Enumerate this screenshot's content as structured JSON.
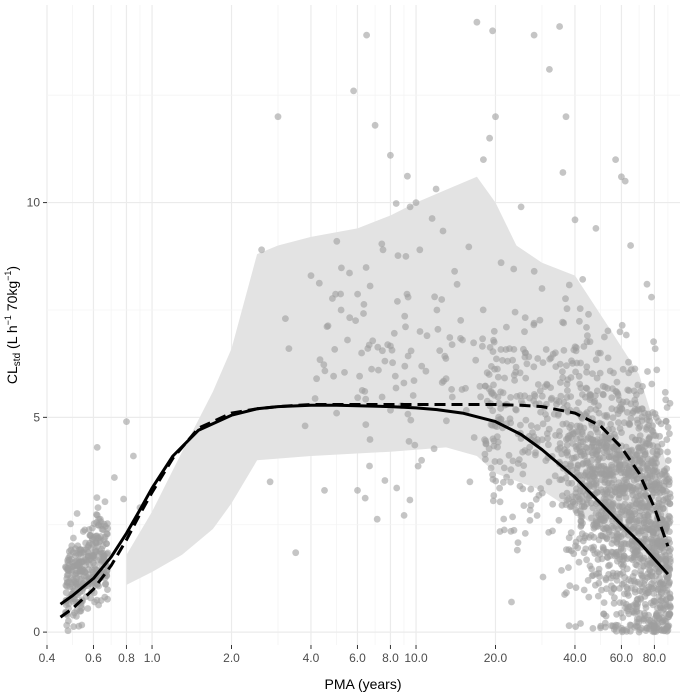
{
  "chart_data": {
    "type": "scatter",
    "title": "",
    "xlabel": "PMA (years)",
    "ylabel": {
      "base": "CL",
      "sub": "std",
      "open": " (L h",
      "sup1": "−1",
      "mid": " 70kg",
      "sup2": "−1",
      "close": ")"
    },
    "x_scale": "log",
    "xlim": [
      0.4,
      100
    ],
    "ylim": [
      -0.3,
      14.6
    ],
    "x_ticks": [
      {
        "value": 0.4,
        "label": "0.4"
      },
      {
        "value": 0.6,
        "label": "0.6"
      },
      {
        "value": 0.8,
        "label": "0.8"
      },
      {
        "value": 1.0,
        "label": "1.0"
      },
      {
        "value": 2.0,
        "label": "2.0"
      },
      {
        "value": 4.0,
        "label": "4.0"
      },
      {
        "value": 6.0,
        "label": "6.0"
      },
      {
        "value": 8.0,
        "label": "8.0"
      },
      {
        "value": 10.0,
        "label": "10.0"
      },
      {
        "value": 20.0,
        "label": "20.0"
      },
      {
        "value": 40.0,
        "label": "40.0"
      },
      {
        "value": 60.0,
        "label": "60.0"
      },
      {
        "value": 80.0,
        "label": "80.0"
      }
    ],
    "y_ticks": [
      {
        "value": 0,
        "label": "0"
      },
      {
        "value": 5,
        "label": "5"
      },
      {
        "value": 10,
        "label": "10"
      }
    ],
    "grid": true,
    "colors": {
      "points": "#9e9e9e",
      "band": "#e3e3e3",
      "grid_major": "#ebebeb",
      "grid_minor": "#f4f4f4",
      "solid_line": "#000000",
      "dashed_line": "#000000"
    },
    "band_upper": [
      {
        "x": 0.8,
        "y": 1.8
      },
      {
        "x": 1.0,
        "y": 2.8
      },
      {
        "x": 1.3,
        "y": 4.2
      },
      {
        "x": 1.7,
        "y": 5.6
      },
      {
        "x": 2.0,
        "y": 6.6
      },
      {
        "x": 2.5,
        "y": 8.8
      },
      {
        "x": 3.0,
        "y": 9.0
      },
      {
        "x": 4.0,
        "y": 9.2
      },
      {
        "x": 6.0,
        "y": 9.4
      },
      {
        "x": 8.0,
        "y": 9.7
      },
      {
        "x": 10.0,
        "y": 10.0
      },
      {
        "x": 13.0,
        "y": 10.3
      },
      {
        "x": 17.0,
        "y": 10.6
      },
      {
        "x": 20.0,
        "y": 10.0
      },
      {
        "x": 24.0,
        "y": 9.0
      },
      {
        "x": 30.0,
        "y": 8.6
      },
      {
        "x": 40.0,
        "y": 8.3
      },
      {
        "x": 55.0,
        "y": 7.0
      },
      {
        "x": 70.0,
        "y": 6.0
      },
      {
        "x": 90.0,
        "y": 3.8
      }
    ],
    "band_lower": [
      {
        "x": 0.8,
        "y": 1.1
      },
      {
        "x": 1.0,
        "y": 1.4
      },
      {
        "x": 1.3,
        "y": 1.8
      },
      {
        "x": 1.7,
        "y": 2.4
      },
      {
        "x": 2.0,
        "y": 3.0
      },
      {
        "x": 2.5,
        "y": 4.0
      },
      {
        "x": 4.0,
        "y": 4.1
      },
      {
        "x": 8.0,
        "y": 4.2
      },
      {
        "x": 13.0,
        "y": 4.3
      },
      {
        "x": 17.0,
        "y": 4.1
      },
      {
        "x": 20.0,
        "y": 3.7
      },
      {
        "x": 30.0,
        "y": 3.3
      },
      {
        "x": 40.0,
        "y": 2.8
      },
      {
        "x": 55.0,
        "y": 2.2
      },
      {
        "x": 70.0,
        "y": 1.7
      },
      {
        "x": 90.0,
        "y": 1.2
      }
    ],
    "series": [
      {
        "style": "solid",
        "x": [
          0.45,
          0.5,
          0.6,
          0.7,
          0.8,
          0.9,
          1.0,
          1.2,
          1.5,
          2.0,
          2.5,
          3.0,
          4.0,
          5.0,
          6.0,
          8.0,
          10.0,
          12.0,
          15.0,
          20.0,
          25.0,
          30.0,
          40.0,
          50.0,
          60.0,
          70.0,
          80.0,
          90.0
        ],
        "y": [
          0.65,
          0.85,
          1.25,
          1.75,
          2.3,
          2.85,
          3.35,
          4.1,
          4.7,
          5.05,
          5.2,
          5.25,
          5.28,
          5.28,
          5.27,
          5.25,
          5.22,
          5.18,
          5.1,
          4.9,
          4.6,
          4.25,
          3.6,
          3.0,
          2.5,
          2.1,
          1.7,
          1.35
        ]
      },
      {
        "style": "dashed",
        "x": [
          0.45,
          0.5,
          0.6,
          0.7,
          0.8,
          0.9,
          1.0,
          1.2,
          1.5,
          2.0,
          2.5,
          3.0,
          4.0,
          5.0,
          6.0,
          8.0,
          10.0,
          15.0,
          20.0,
          25.0,
          30.0,
          40.0,
          50.0,
          60.0,
          70.0,
          80.0,
          90.0
        ],
        "y": [
          0.35,
          0.55,
          1.0,
          1.55,
          2.15,
          2.75,
          3.25,
          4.05,
          4.75,
          5.1,
          5.2,
          5.25,
          5.3,
          5.3,
          5.3,
          5.3,
          5.3,
          5.3,
          5.3,
          5.28,
          5.25,
          5.1,
          4.8,
          4.3,
          3.7,
          2.9,
          2.0
        ]
      }
    ],
    "points": [
      [
        0.8,
        4.9
      ],
      [
        0.85,
        4.1
      ],
      [
        0.62,
        4.3
      ],
      [
        0.72,
        3.6
      ],
      [
        0.78,
        3.1
      ],
      [
        0.9,
        2.9
      ],
      [
        2.6,
        8.9
      ],
      [
        2.8,
        3.5
      ],
      [
        3.0,
        12.0
      ],
      [
        3.2,
        7.3
      ],
      [
        3.3,
        6.6
      ],
      [
        3.5,
        1.85
      ],
      [
        3.8,
        4.8
      ],
      [
        4.0,
        8.3
      ],
      [
        4.2,
        5.9
      ],
      [
        4.5,
        3.3
      ],
      [
        5.0,
        5.1
      ],
      [
        5.2,
        7.5
      ],
      [
        5.5,
        6.8
      ],
      [
        5.8,
        12.6
      ],
      [
        6.0,
        3.3
      ],
      [
        6.5,
        13.9
      ],
      [
        7.0,
        11.8
      ],
      [
        7.2,
        6.1
      ],
      [
        7.5,
        8.9
      ],
      [
        8.0,
        11.1
      ],
      [
        8.5,
        7.7
      ],
      [
        9.0,
        5.8
      ],
      [
        9.5,
        9.9
      ],
      [
        10.0,
        10.0
      ],
      [
        10.5,
        4.0
      ],
      [
        11.0,
        6.9
      ],
      [
        12.0,
        7.5
      ],
      [
        13.0,
        5.9
      ],
      [
        14.0,
        8.4
      ],
      [
        15.0,
        6.8
      ],
      [
        16.0,
        3.5
      ],
      [
        17.0,
        14.2
      ],
      [
        18.0,
        11.0
      ],
      [
        19.0,
        11.5
      ],
      [
        19.5,
        14.0
      ],
      [
        20.0,
        12.0
      ],
      [
        21.0,
        8.6
      ],
      [
        22.0,
        7.1
      ],
      [
        23.0,
        0.7
      ],
      [
        25.0,
        9.9
      ],
      [
        26.0,
        6.5
      ],
      [
        27.0,
        2.6
      ],
      [
        28.0,
        13.9
      ],
      [
        30.0,
        8.0
      ],
      [
        32.0,
        13.1
      ],
      [
        35.0,
        14.1
      ],
      [
        36.0,
        10.7
      ],
      [
        37.0,
        12.0
      ],
      [
        38.0,
        0.15
      ],
      [
        40.0,
        9.6
      ],
      [
        42.0,
        0.2
      ],
      [
        45.0,
        7.4
      ],
      [
        48.0,
        9.4
      ],
      [
        50.0,
        0.1
      ],
      [
        55.0,
        0.15
      ],
      [
        57.0,
        11.0
      ],
      [
        60.0,
        10.6
      ],
      [
        62.0,
        10.5
      ],
      [
        65.0,
        9.0
      ],
      [
        70.0,
        0.0
      ],
      [
        75.0,
        8.1
      ],
      [
        78.0,
        7.8
      ],
      [
        85.0,
        0.05
      ]
    ],
    "clusters": [
      {
        "x_min": 0.47,
        "x_max": 0.68,
        "y_center_start": 1.0,
        "y_center_end": 2.0,
        "y_spread": 0.55,
        "count": 300
      },
      {
        "x_min": 4.0,
        "x_max": 20.0,
        "y_center_start": 6.5,
        "y_center_end": 6.5,
        "y_spread": 1.5,
        "count": 120
      },
      {
        "x_min": 18.0,
        "x_max": 35.0,
        "y_center_start": 5.0,
        "y_center_end": 4.6,
        "y_spread": 1.4,
        "count": 200
      },
      {
        "x_min": 35.0,
        "x_max": 92.0,
        "y_center_start": 4.5,
        "y_center_end": 2.0,
        "y_spread": 1.5,
        "count": 1400
      }
    ]
  }
}
